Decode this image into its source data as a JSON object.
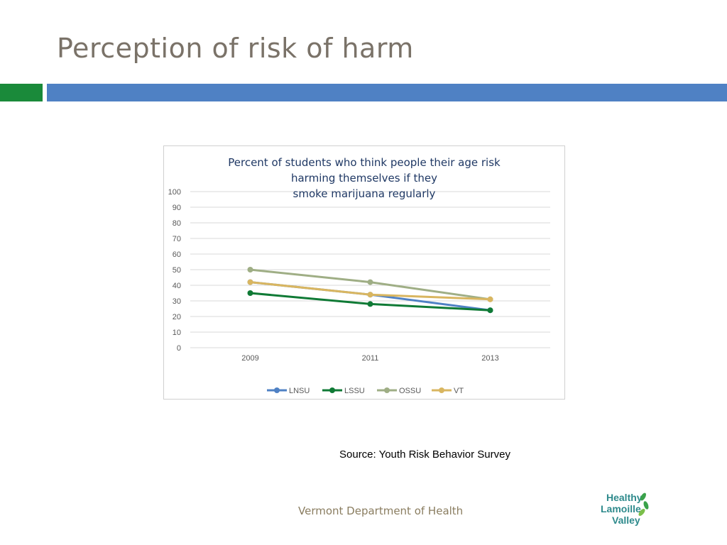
{
  "slide": {
    "title": "Perception of risk of harm",
    "source": "Source: Youth Risk Behavior Survey",
    "footer": "Vermont Department of Health"
  },
  "logo": {
    "lines": [
      "Healthy",
      "Lamoille",
      "Valley"
    ],
    "color": "#2e8a8c",
    "leaf_color": "#3aa24a"
  },
  "colors": {
    "accent_green": "#1a8a3a",
    "accent_blue": "#4f81c4"
  },
  "chart_data": {
    "type": "line",
    "title_lines": [
      "Percent of students who think people their age risk",
      "harming themselves if they",
      "smoke marijuana regularly"
    ],
    "categories": [
      "2009",
      "2011",
      "2013"
    ],
    "ylim": [
      0,
      100
    ],
    "yticks": [
      "0",
      "10",
      "20",
      "30",
      "40",
      "50",
      "60",
      "70",
      "80",
      "90",
      "100"
    ],
    "grid": true,
    "legend_position": "bottom",
    "series": [
      {
        "name": "LNSU",
        "color": "#4f81c4",
        "values": [
          42,
          34,
          24
        ]
      },
      {
        "name": "LSSU",
        "color": "#0f7a35",
        "values": [
          35,
          28,
          24
        ]
      },
      {
        "name": "OSSU",
        "color": "#9fae85",
        "values": [
          50,
          42,
          31
        ]
      },
      {
        "name": "VT",
        "color": "#d9b660",
        "values": [
          42,
          34,
          31
        ]
      }
    ]
  }
}
